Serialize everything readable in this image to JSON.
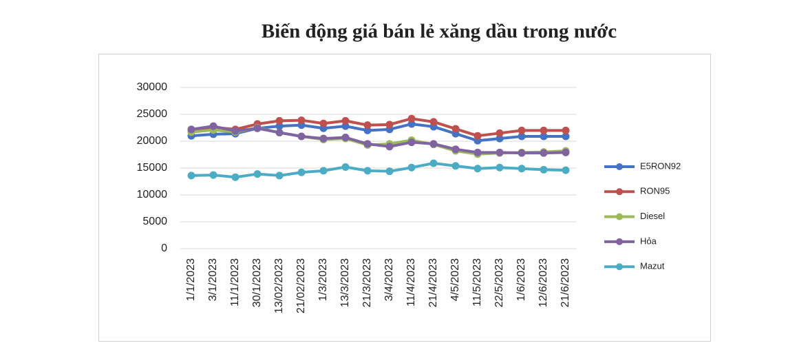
{
  "chart_data": {
    "type": "line",
    "title": "Biến động giá bán lẻ xăng dầu trong nước",
    "categories": [
      "1/1/2023",
      "3/1/2023",
      "11/1/2023",
      "30/1/2023",
      "13/02/2023",
      "21/02/2023",
      "1/3/2023",
      "13/3/2023",
      "21/3/2023",
      "3/4/2023",
      "11/4/2023",
      "21/4/2023",
      "4/5/2023",
      "11/5/2023",
      "22/5/2023",
      "1/6/2023",
      "12/6/2023",
      "21/6/2023"
    ],
    "series": [
      {
        "name": "E5RON92",
        "color": "#4472c4",
        "values": [
          21000,
          21300,
          21400,
          22400,
          22800,
          23000,
          22400,
          22800,
          22000,
          22200,
          23200,
          22700,
          21400,
          20100,
          20500,
          20900,
          20900,
          20900
        ]
      },
      {
        "name": "RON95",
        "color": "#c0504d",
        "values": [
          21800,
          22600,
          22200,
          23200,
          23800,
          23900,
          23300,
          23800,
          23000,
          23100,
          24200,
          23600,
          22300,
          21000,
          21500,
          22000,
          22000,
          22000
        ]
      },
      {
        "name": "Diesel",
        "color": "#9bbb59",
        "values": [
          21700,
          22100,
          21700,
          22500,
          21600,
          20900,
          20300,
          20500,
          19300,
          19500,
          20200,
          19400,
          18200,
          17600,
          17800,
          17900,
          18000,
          18200
        ]
      },
      {
        "name": "Hỏa",
        "color": "#8064a2",
        "values": [
          22200,
          22800,
          21900,
          22400,
          21600,
          20900,
          20500,
          20700,
          19500,
          19000,
          19800,
          19500,
          18500,
          17900,
          17900,
          17800,
          17800,
          17900
        ]
      },
      {
        "name": "Mazut",
        "color": "#4bacc6",
        "values": [
          13600,
          13700,
          13300,
          13900,
          13600,
          14200,
          14500,
          15200,
          14500,
          14400,
          15100,
          15900,
          15400,
          14900,
          15100,
          14900,
          14700,
          14600
        ]
      }
    ],
    "ylim": [
      0,
      30000
    ],
    "yticks": [
      0,
      5000,
      10000,
      15000,
      20000,
      25000,
      30000
    ],
    "grid": true,
    "legend": "right"
  }
}
